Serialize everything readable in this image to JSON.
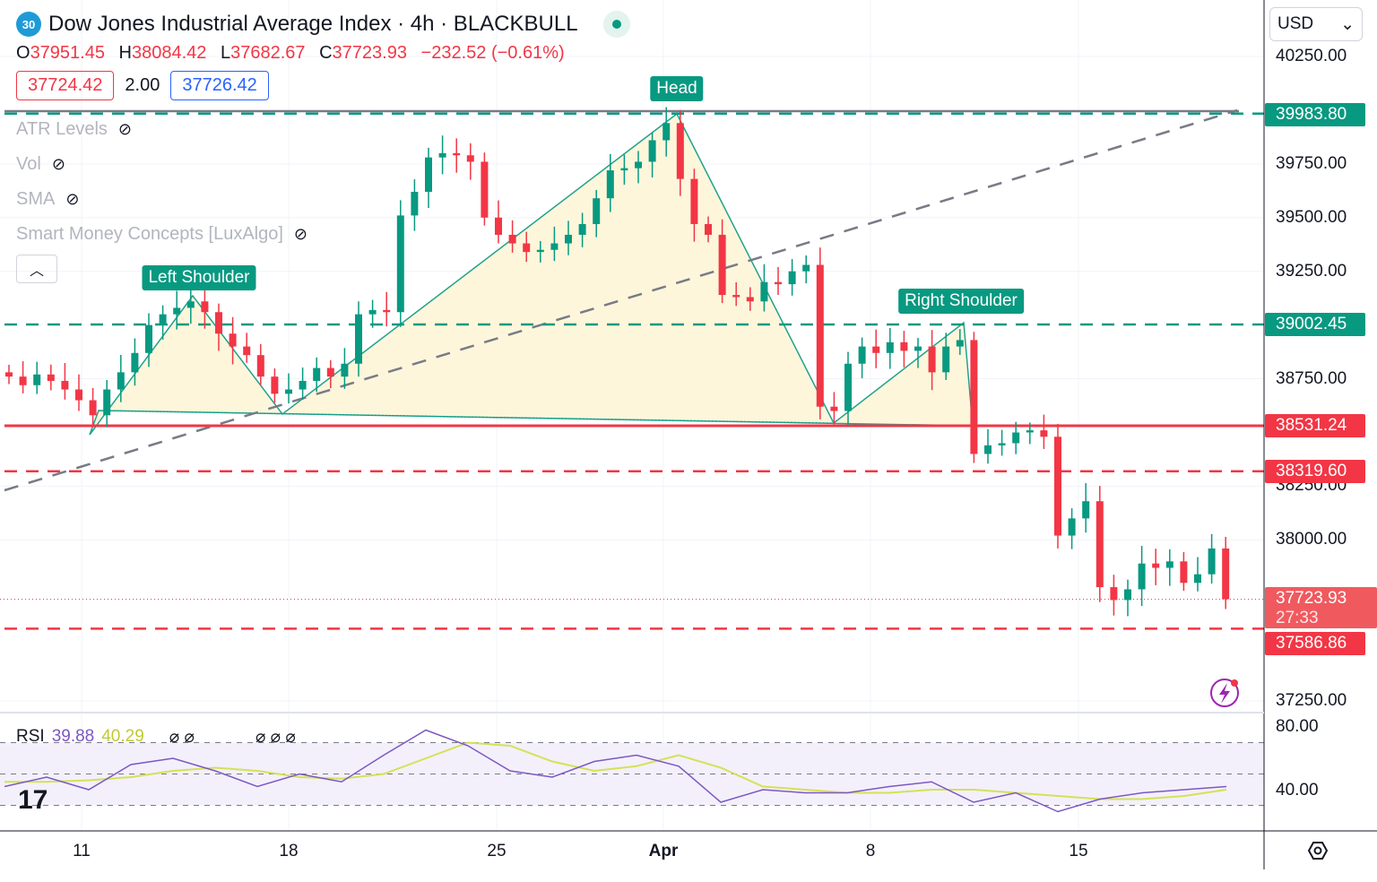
{
  "header": {
    "badge": "30",
    "title": "Dow Jones Industrial Average Index · 4h · BLACKBULL",
    "ohlc": {
      "o_label": "O",
      "o": "37951.45",
      "h_label": "H",
      "h": "38084.42",
      "l_label": "L",
      "l": "37682.67",
      "c_label": "C",
      "c": "37723.93",
      "change": "−232.52 (−0.61%)"
    },
    "bid": "37724.42",
    "spread": "2.00",
    "ask": "37726.42"
  },
  "indicators": [
    {
      "label": "ATR Levels"
    },
    {
      "label": "Vol"
    },
    {
      "label": "SMA"
    },
    {
      "label": "Smart Money Concepts [LuxAlgo]"
    }
  ],
  "currency": "USD",
  "pattern_labels": {
    "left": "Left Shoulder",
    "head": "Head",
    "right": "Right Shoulder"
  },
  "colors": {
    "up": "#089981",
    "down": "#f23645",
    "pattern_fill": "#fdf6d8",
    "rsi": "#7e57c2",
    "rsi_ma": "#d4e157"
  },
  "chart_data": {
    "type": "candlestick",
    "x_ticks": [
      "11",
      "18",
      "25",
      "Apr",
      "8",
      "15"
    ],
    "y_ticks": [
      "40250.00",
      "39750.00",
      "39500.00",
      "39250.00",
      "38750.00",
      "38250.00",
      "38000.00",
      "37250.00"
    ],
    "ylim": [
      37150,
      40350
    ],
    "closes": [
      38760,
      38720,
      38770,
      38740,
      38700,
      38650,
      38580,
      38700,
      38780,
      38870,
      39000,
      39050,
      39080,
      39110,
      39060,
      38960,
      38900,
      38860,
      38760,
      38680,
      38700,
      38740,
      38800,
      38760,
      38820,
      39050,
      39070,
      39060,
      39510,
      39620,
      39780,
      39800,
      39790,
      39760,
      39500,
      39420,
      39380,
      39340,
      39350,
      39380,
      39420,
      39470,
      39590,
      39720,
      39730,
      39760,
      39860,
      39940,
      39680,
      39470,
      39420,
      39140,
      39130,
      39110,
      39200,
      39190,
      39250,
      39280,
      38620,
      38600,
      38820,
      38900,
      38870,
      38920,
      38880,
      38900,
      38780,
      38900,
      38930,
      38400,
      38440,
      38450,
      38500,
      38510,
      38480,
      38020,
      38100,
      38180,
      37780,
      37720,
      37770,
      37890,
      37870,
      37900,
      37800,
      37840,
      37960,
      37724
    ],
    "levels": [
      {
        "value": "39983.80",
        "style": "dashed",
        "color": "#089981"
      },
      {
        "value": "39002.45",
        "style": "dashed",
        "color": "#089981"
      },
      {
        "value": "38531.24",
        "style": "solid",
        "color": "#f23645"
      },
      {
        "value": "38319.60",
        "style": "dashed",
        "color": "#f23645"
      },
      {
        "value": "37586.86",
        "style": "dashed",
        "color": "#f23645"
      }
    ],
    "last_price": "37723.93",
    "countdown": "27:33",
    "rsi": {
      "label": "RSI",
      "value": "39.88",
      "ma_value": "40.29",
      "y_ticks": [
        "80.00",
        "40.00"
      ],
      "ylim": [
        10,
        90
      ],
      "values": [
        42,
        48,
        40,
        56,
        60,
        52,
        42,
        50,
        45,
        62,
        78,
        68,
        52,
        48,
        58,
        62,
        55,
        32,
        40,
        38,
        38,
        42,
        45,
        32,
        38,
        26,
        34,
        38,
        40,
        42
      ],
      "ma": [
        45,
        45,
        46,
        48,
        52,
        54,
        52,
        48,
        47,
        50,
        60,
        70,
        68,
        58,
        52,
        55,
        62,
        54,
        42,
        40,
        38,
        38,
        40,
        40,
        38,
        36,
        34,
        34,
        36,
        40
      ]
    }
  }
}
